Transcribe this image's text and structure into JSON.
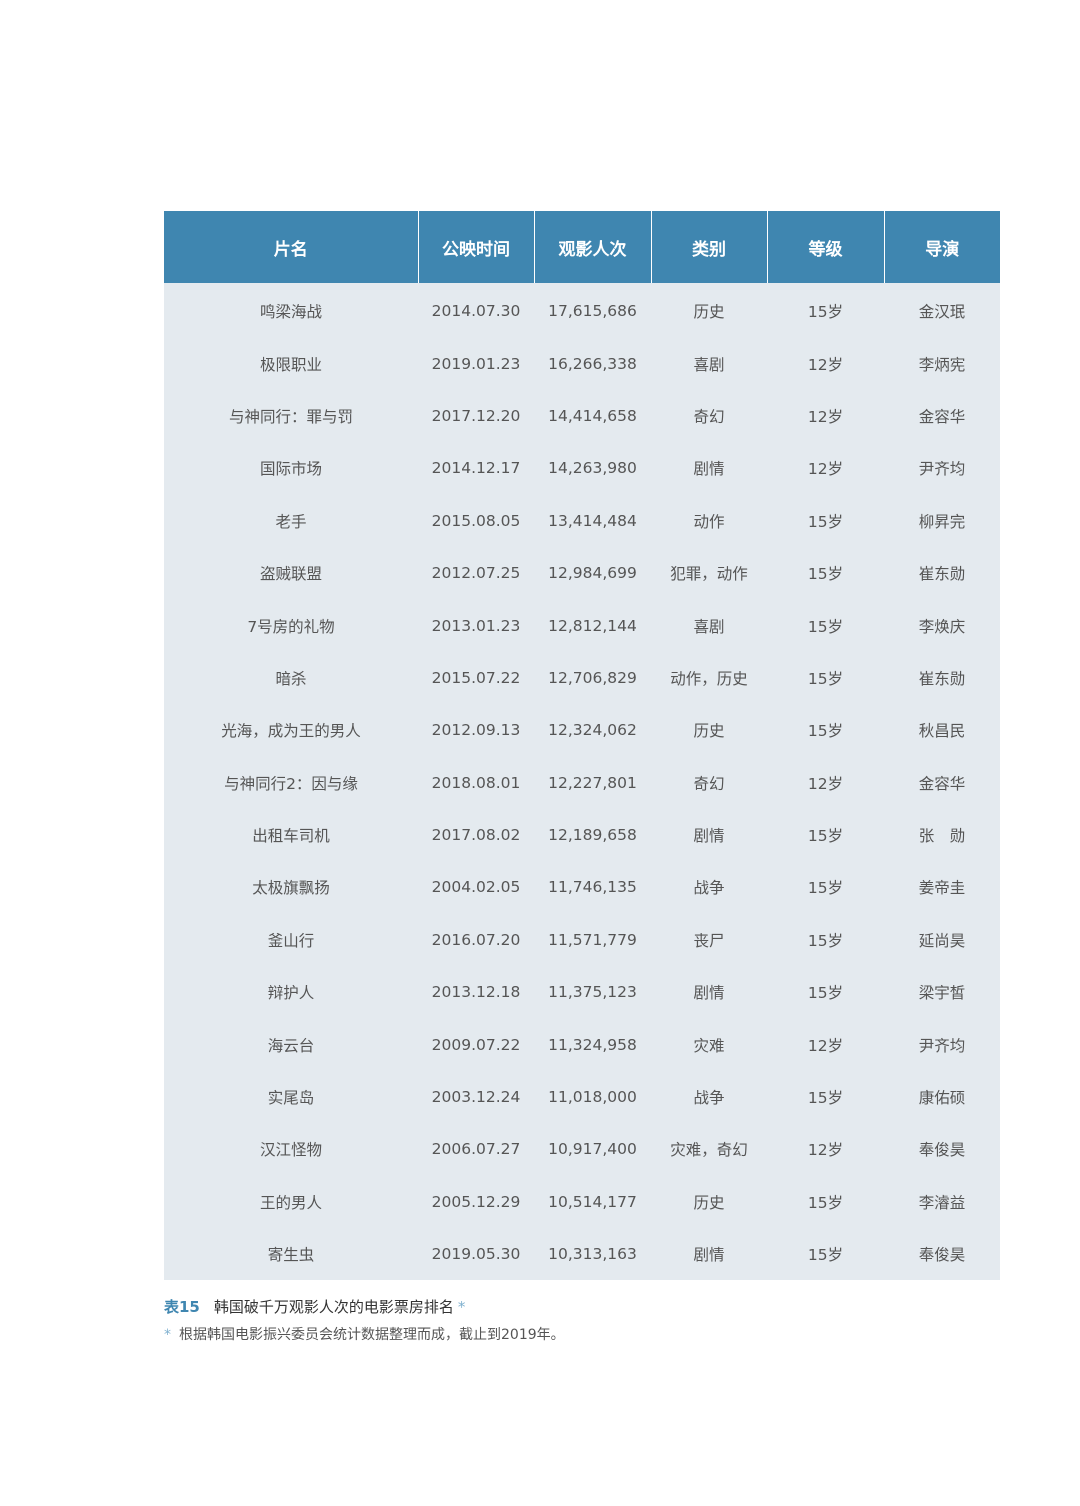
{
  "table": {
    "headers": [
      "片名",
      "公映时间",
      "观影人次",
      "类别",
      "等级",
      "导演"
    ],
    "rows": [
      [
        "鸣梁海战",
        "2014.07.30",
        "17,615,686",
        "历史",
        "15岁",
        "金汉珉"
      ],
      [
        "极限职业",
        "2019.01.23",
        "16,266,338",
        "喜剧",
        "12岁",
        "李炳宪"
      ],
      [
        "与神同行：罪与罚",
        "2017.12.20",
        "14,414,658",
        "奇幻",
        "12岁",
        "金容华"
      ],
      [
        "国际市场",
        "2014.12.17",
        "14,263,980",
        "剧情",
        "12岁",
        "尹齐均"
      ],
      [
        "老手",
        "2015.08.05",
        "13,414,484",
        "动作",
        "15岁",
        "柳昇完"
      ],
      [
        "盗贼联盟",
        "2012.07.25",
        "12,984,699",
        "犯罪，动作",
        "15岁",
        "崔东勋"
      ],
      [
        "7号房的礼物",
        "2013.01.23",
        "12,812,144",
        "喜剧",
        "15岁",
        "李焕庆"
      ],
      [
        "暗杀",
        "2015.07.22",
        "12,706,829",
        "动作，历史",
        "15岁",
        "崔东勋"
      ],
      [
        "光海，成为王的男人",
        "2012.09.13",
        "12,324,062",
        "历史",
        "15岁",
        "秋昌民"
      ],
      [
        "与神同行2：因与缘",
        "2018.08.01",
        "12,227,801",
        "奇幻",
        "12岁",
        "金容华"
      ],
      [
        "出租车司机",
        "2017.08.02",
        "12,189,658",
        "剧情",
        "15岁",
        "张　勋"
      ],
      [
        "太极旗飘扬",
        "2004.02.05",
        "11,746,135",
        "战争",
        "15岁",
        "姜帝圭"
      ],
      [
        "釜山行",
        "2016.07.20",
        "11,571,779",
        "丧尸",
        "15岁",
        "延尚昊"
      ],
      [
        "辩护人",
        "2013.12.18",
        "11,375,123",
        "剧情",
        "15岁",
        "梁宇皙"
      ],
      [
        "海云台",
        "2009.07.22",
        "11,324,958",
        "灾难",
        "12岁",
        "尹齐均"
      ],
      [
        "实尾岛",
        "2003.12.24",
        "11,018,000",
        "战争",
        "15岁",
        "康佑硕"
      ],
      [
        "汉江怪物",
        "2006.07.27",
        "10,917,400",
        "灾难，奇幻",
        "12岁",
        "奉俊昊"
      ],
      [
        "王的男人",
        "2005.12.29",
        "10,514,177",
        "历史",
        "15岁",
        "李濬益"
      ],
      [
        "寄生虫",
        "2019.05.30",
        "10,313,163",
        "剧情",
        "15岁",
        "奉俊昊"
      ]
    ]
  },
  "caption": {
    "number": "表15",
    "title": "韩国破千万观影人次的电影票房排名",
    "star": "*"
  },
  "note": {
    "star": "*",
    "text": "根据韩国电影振兴委员会统计数据整理而成，截止到2019年。"
  },
  "colors": {
    "header_bg": "#3f86b0",
    "body_bg": "#e4eaef",
    "accent": "#3f86b0"
  }
}
